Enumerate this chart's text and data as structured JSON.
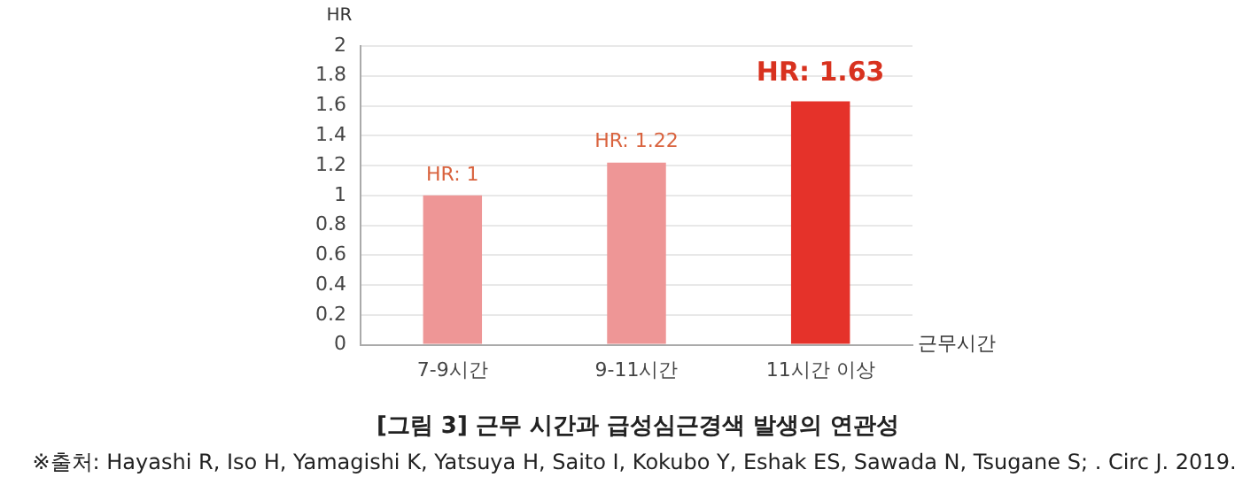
{
  "chart_data": {
    "type": "bar",
    "title": "[그림 3] 근무 시간과 급성심근경색 발생의 연관성",
    "xlabel": "근무시간",
    "ylabel": "HR",
    "categories": [
      "7-9시간",
      "9-11시간",
      "11시간 이상"
    ],
    "values": [
      1,
      1.22,
      1.63
    ],
    "colors": [
      "#ee9696",
      "#ee9696",
      "#e5322a"
    ],
    "value_labels": [
      "HR: 1",
      "HR: 1.22",
      "HR: 1.63"
    ],
    "ylim": [
      0,
      2
    ],
    "yticks": [
      0,
      0.2,
      0.4,
      0.6,
      0.8,
      1,
      1.2,
      1.4,
      1.6,
      1.8,
      2
    ],
    "grid": "y",
    "legend": false,
    "annotations": [
      "※출처: Hayashi R, Iso H, Yamagishi K, Yatsuya H, Saito I, Kokubo Y, Eshak ES, Sawada N, Tsugane S; . Circ J. 2019."
    ]
  }
}
